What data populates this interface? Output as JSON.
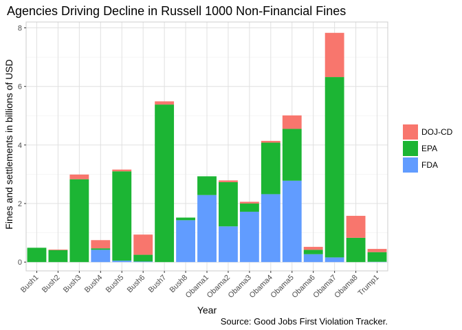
{
  "chart_data": {
    "type": "bar",
    "stacked": true,
    "title": "Agencies Driving Decline in Russell 1000 Non-Financial Fines",
    "xlabel": "Year",
    "ylabel": "Fines and settlements in billions of USD",
    "caption": "Source: Good Jobs First Violation Tracker.",
    "ylim": [
      -0.3,
      8.2
    ],
    "yticks": [
      0,
      2,
      4,
      6,
      8
    ],
    "grid": true,
    "legend_position": "right",
    "categories": [
      "Bush1",
      "Bush2",
      "Bush3",
      "Bush4",
      "Bush5",
      "Bush6",
      "Bush7",
      "Bush8",
      "Obama1",
      "Obama2",
      "Obama3",
      "Obama4",
      "Obama5",
      "Obama6",
      "Obama7",
      "Obama8",
      "Trump1"
    ],
    "series": [
      {
        "name": "FDA",
        "color": "#619CFF",
        "values": [
          0.0,
          0.0,
          0.0,
          0.42,
          0.05,
          0.02,
          0.0,
          1.43,
          2.29,
          1.22,
          1.72,
          2.32,
          2.78,
          0.27,
          0.16,
          0.0,
          0.01
        ]
      },
      {
        "name": "EPA",
        "color": "#1CB534",
        "values": [
          0.49,
          0.41,
          2.83,
          0.05,
          3.05,
          0.23,
          5.38,
          0.09,
          0.64,
          1.51,
          0.28,
          1.76,
          1.77,
          0.15,
          6.16,
          0.83,
          0.33
        ]
      },
      {
        "name": "DOJ-CD",
        "color": "#F8766D",
        "values": [
          0.0,
          0.02,
          0.16,
          0.28,
          0.06,
          0.69,
          0.11,
          0.0,
          0.0,
          0.06,
          0.06,
          0.06,
          0.46,
          0.1,
          1.51,
          0.75,
          0.11
        ]
      }
    ],
    "legend_order": [
      "DOJ-CD",
      "EPA",
      "FDA"
    ]
  }
}
